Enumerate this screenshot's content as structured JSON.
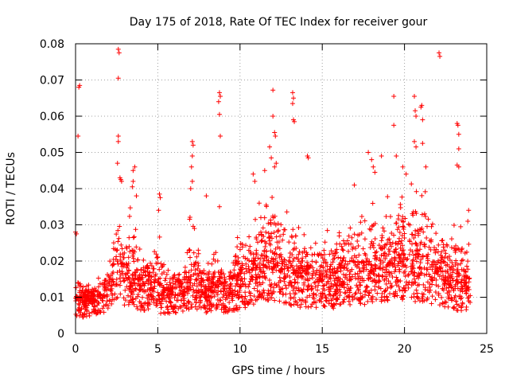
{
  "chart_data": {
    "type": "scatter",
    "title": "Day 175 of 2018, Rate Of TEC Index for receiver gour",
    "xlabel": "GPS time / hours",
    "ylabel": "ROTI / TECUs",
    "xlim": [
      0,
      25
    ],
    "ylim": [
      0,
      0.08
    ],
    "xticks": [
      0,
      5,
      10,
      15,
      20,
      25
    ],
    "yticks": [
      0,
      0.01,
      0.02,
      0.03,
      0.04,
      0.05,
      0.06,
      0.07,
      0.08
    ],
    "xtick_labels": [
      "0",
      "5",
      "10",
      "15",
      "20",
      "25"
    ],
    "ytick_labels": [
      "0",
      "0.01",
      "0.02",
      "0.03",
      "0.04",
      "0.05",
      "0.06",
      "0.07",
      "0.08"
    ],
    "marker": "+",
    "color": "#ff0000",
    "grid": true,
    "series_name": "ROTI",
    "profile": {
      "hours": [
        0,
        0.5,
        1,
        1.5,
        2,
        2.3,
        2.6,
        3,
        3.5,
        4,
        4.5,
        5,
        5.5,
        6,
        6.5,
        7,
        7.5,
        8,
        8.5,
        9,
        9.5,
        10,
        10.5,
        11,
        11.5,
        12,
        12.5,
        13,
        13.5,
        14,
        14.5,
        15,
        15.5,
        16,
        16.5,
        17,
        17.5,
        18,
        18.5,
        19,
        19.5,
        20,
        20.5,
        21,
        21.5,
        22,
        22.5,
        23,
        23.5,
        24
      ],
      "baseline": [
        0.009,
        0.008,
        0.008,
        0.009,
        0.01,
        0.012,
        0.018,
        0.014,
        0.012,
        0.011,
        0.012,
        0.01,
        0.009,
        0.01,
        0.011,
        0.012,
        0.011,
        0.01,
        0.012,
        0.01,
        0.011,
        0.012,
        0.013,
        0.015,
        0.016,
        0.016,
        0.015,
        0.014,
        0.013,
        0.013,
        0.013,
        0.013,
        0.012,
        0.013,
        0.014,
        0.014,
        0.014,
        0.015,
        0.015,
        0.016,
        0.016,
        0.016,
        0.016,
        0.016,
        0.015,
        0.014,
        0.013,
        0.012,
        0.011,
        0.011
      ],
      "upper": [
        0.018,
        0.014,
        0.014,
        0.016,
        0.018,
        0.028,
        0.04,
        0.026,
        0.04,
        0.022,
        0.022,
        0.03,
        0.018,
        0.018,
        0.016,
        0.036,
        0.022,
        0.018,
        0.03,
        0.02,
        0.022,
        0.03,
        0.034,
        0.04,
        0.036,
        0.042,
        0.034,
        0.034,
        0.03,
        0.03,
        0.03,
        0.03,
        0.028,
        0.03,
        0.032,
        0.034,
        0.034,
        0.038,
        0.04,
        0.04,
        0.04,
        0.04,
        0.042,
        0.042,
        0.04,
        0.034,
        0.03,
        0.03,
        0.03,
        0.026
      ]
    },
    "notable_points": [
      {
        "x": 0.0,
        "y": 0.028
      },
      {
        "x": 0.05,
        "y": 0.0275
      },
      {
        "x": 0.15,
        "y": 0.0545
      },
      {
        "x": 0.2,
        "y": 0.068
      },
      {
        "x": 0.25,
        "y": 0.0685
      },
      {
        "x": 2.6,
        "y": 0.0785
      },
      {
        "x": 2.65,
        "y": 0.0775
      },
      {
        "x": 2.6,
        "y": 0.0705
      },
      {
        "x": 2.6,
        "y": 0.0545
      },
      {
        "x": 2.6,
        "y": 0.053
      },
      {
        "x": 2.55,
        "y": 0.047
      },
      {
        "x": 2.7,
        "y": 0.043
      },
      {
        "x": 2.75,
        "y": 0.0425
      },
      {
        "x": 2.8,
        "y": 0.042
      },
      {
        "x": 3.5,
        "y": 0.045
      },
      {
        "x": 3.6,
        "y": 0.046
      },
      {
        "x": 3.5,
        "y": 0.042
      },
      {
        "x": 3.45,
        "y": 0.0405
      },
      {
        "x": 3.7,
        "y": 0.038
      },
      {
        "x": 5.1,
        "y": 0.0385
      },
      {
        "x": 5.15,
        "y": 0.0375
      },
      {
        "x": 5.05,
        "y": 0.034
      },
      {
        "x": 7.1,
        "y": 0.053
      },
      {
        "x": 7.15,
        "y": 0.052
      },
      {
        "x": 7.1,
        "y": 0.049
      },
      {
        "x": 7.05,
        "y": 0.046
      },
      {
        "x": 7.1,
        "y": 0.042
      },
      {
        "x": 7.0,
        "y": 0.04
      },
      {
        "x": 7.95,
        "y": 0.038
      },
      {
        "x": 8.75,
        "y": 0.0665
      },
      {
        "x": 8.8,
        "y": 0.0655
      },
      {
        "x": 8.7,
        "y": 0.064
      },
      {
        "x": 8.75,
        "y": 0.0605
      },
      {
        "x": 8.8,
        "y": 0.0545
      },
      {
        "x": 8.75,
        "y": 0.035
      },
      {
        "x": 10.8,
        "y": 0.044
      },
      {
        "x": 10.9,
        "y": 0.042
      },
      {
        "x": 11.5,
        "y": 0.045
      },
      {
        "x": 11.8,
        "y": 0.0515
      },
      {
        "x": 11.9,
        "y": 0.0485
      },
      {
        "x": 12.0,
        "y": 0.0672
      },
      {
        "x": 12.1,
        "y": 0.0555
      },
      {
        "x": 12.15,
        "y": 0.0545
      },
      {
        "x": 12.0,
        "y": 0.06
      },
      {
        "x": 12.2,
        "y": 0.047
      },
      {
        "x": 12.1,
        "y": 0.046
      },
      {
        "x": 13.2,
        "y": 0.0665
      },
      {
        "x": 13.25,
        "y": 0.065
      },
      {
        "x": 13.2,
        "y": 0.0635
      },
      {
        "x": 13.25,
        "y": 0.059
      },
      {
        "x": 13.3,
        "y": 0.0585
      },
      {
        "x": 14.1,
        "y": 0.049
      },
      {
        "x": 14.15,
        "y": 0.0485
      },
      {
        "x": 16.95,
        "y": 0.041
      },
      {
        "x": 17.8,
        "y": 0.05
      },
      {
        "x": 18.0,
        "y": 0.048
      },
      {
        "x": 18.1,
        "y": 0.046
      },
      {
        "x": 18.2,
        "y": 0.0445
      },
      {
        "x": 18.6,
        "y": 0.049
      },
      {
        "x": 19.35,
        "y": 0.0655
      },
      {
        "x": 19.35,
        "y": 0.0575
      },
      {
        "x": 19.5,
        "y": 0.049
      },
      {
        "x": 19.9,
        "y": 0.046
      },
      {
        "x": 20.1,
        "y": 0.044
      },
      {
        "x": 20.6,
        "y": 0.0655
      },
      {
        "x": 20.65,
        "y": 0.0615
      },
      {
        "x": 20.7,
        "y": 0.06
      },
      {
        "x": 20.6,
        "y": 0.053
      },
      {
        "x": 20.7,
        "y": 0.0515
      },
      {
        "x": 21.05,
        "y": 0.063
      },
      {
        "x": 21.0,
        "y": 0.0625
      },
      {
        "x": 21.1,
        "y": 0.059
      },
      {
        "x": 21.1,
        "y": 0.0525
      },
      {
        "x": 21.3,
        "y": 0.046
      },
      {
        "x": 22.1,
        "y": 0.0775
      },
      {
        "x": 22.15,
        "y": 0.0765
      },
      {
        "x": 23.2,
        "y": 0.058
      },
      {
        "x": 23.25,
        "y": 0.0575
      },
      {
        "x": 23.3,
        "y": 0.055
      },
      {
        "x": 23.3,
        "y": 0.051
      },
      {
        "x": 23.2,
        "y": 0.0465
      },
      {
        "x": 23.3,
        "y": 0.046
      },
      {
        "x": 23.9,
        "y": 0.034
      },
      {
        "x": 23.85,
        "y": 0.031
      }
    ]
  }
}
